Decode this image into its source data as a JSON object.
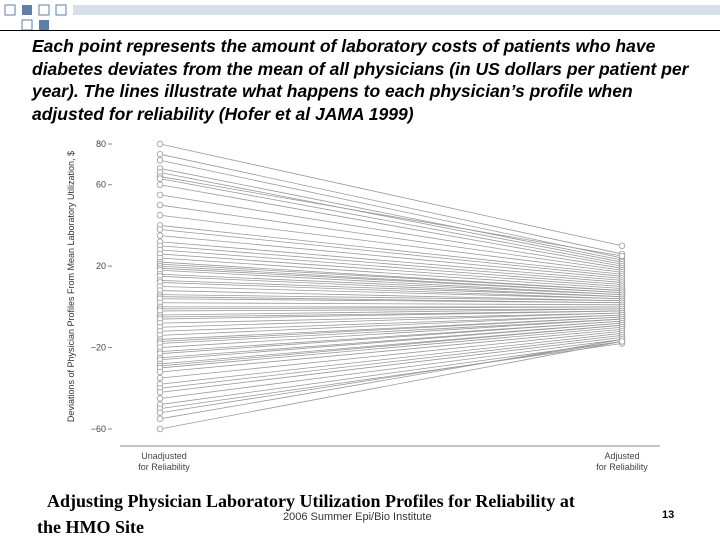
{
  "caption": "Each point represents the amount of laboratory costs of patients who have diabetes deviates from the mean of all physicians (in US dollars per patient per year). The lines illustrate what happens to each physician’s profile when adjusted for reliability (Hofer et al JAMA 1999)",
  "source_title": {
    "line1": "Adjusting Physician Laboratory Utilization Profiles for Reliability at",
    "line2": "the HMO Site"
  },
  "footer": "2006 Summer Epi/Bio Institute",
  "slide_number": "13",
  "colors": {
    "lines": "#9a9a9a",
    "points": "#9a9a9a",
    "axis": "#888888",
    "deco": "#5b7fa6"
  },
  "chart_data": {
    "type": "line",
    "ylabel": "Deviations of Physician Profiles From Mean Laboratory Utilization, $",
    "categories": [
      "Unadjusted for Reliability",
      "Adjusted for Reliability"
    ],
    "ylim": [
      -60,
      80
    ],
    "yticks": [
      -60,
      -20,
      20,
      60,
      80
    ],
    "ytick_labels": [
      "−60",
      "−20",
      "20",
      "60",
      "80"
    ],
    "grid": false,
    "series": [
      {
        "values": [
          80,
          30
        ]
      },
      {
        "values": [
          75,
          26
        ]
      },
      {
        "values": [
          72,
          24
        ]
      },
      {
        "values": [
          68,
          23
        ]
      },
      {
        "values": [
          66,
          22
        ]
      },
      {
        "values": [
          64,
          25
        ]
      },
      {
        "values": [
          63,
          21
        ]
      },
      {
        "values": [
          60,
          20
        ]
      },
      {
        "values": [
          55,
          19
        ]
      },
      {
        "values": [
          50,
          18
        ]
      },
      {
        "values": [
          45,
          17
        ]
      },
      {
        "values": [
          40,
          16
        ]
      },
      {
        "values": [
          38,
          15
        ]
      },
      {
        "values": [
          35,
          14
        ]
      },
      {
        "values": [
          32,
          13
        ]
      },
      {
        "values": [
          30,
          12
        ]
      },
      {
        "values": [
          28,
          11
        ]
      },
      {
        "values": [
          26,
          10
        ]
      },
      {
        "values": [
          24,
          9
        ]
      },
      {
        "values": [
          22,
          8
        ]
      },
      {
        "values": [
          21,
          8
        ]
      },
      {
        "values": [
          20,
          7
        ]
      },
      {
        "values": [
          19,
          7
        ]
      },
      {
        "values": [
          18,
          6
        ]
      },
      {
        "values": [
          16,
          6
        ]
      },
      {
        "values": [
          15,
          5
        ]
      },
      {
        "values": [
          13,
          5
        ]
      },
      {
        "values": [
          12,
          4
        ]
      },
      {
        "values": [
          10,
          4
        ]
      },
      {
        "values": [
          8,
          3
        ]
      },
      {
        "values": [
          6,
          3
        ]
      },
      {
        "values": [
          5,
          2
        ]
      },
      {
        "values": [
          4,
          2
        ]
      },
      {
        "values": [
          2,
          1
        ]
      },
      {
        "values": [
          0,
          0
        ]
      },
      {
        "values": [
          -1,
          0
        ]
      },
      {
        "values": [
          -2,
          -1
        ]
      },
      {
        "values": [
          -4,
          -1
        ]
      },
      {
        "values": [
          -5,
          -2
        ]
      },
      {
        "values": [
          -6,
          -2
        ]
      },
      {
        "values": [
          -8,
          -3
        ]
      },
      {
        "values": [
          -10,
          -3
        ]
      },
      {
        "values": [
          -12,
          -4
        ]
      },
      {
        "values": [
          -14,
          -4
        ]
      },
      {
        "values": [
          -16,
          -5
        ]
      },
      {
        "values": [
          -17,
          -5
        ]
      },
      {
        "values": [
          -18,
          -6
        ]
      },
      {
        "values": [
          -20,
          -6
        ]
      },
      {
        "values": [
          -22,
          -7
        ]
      },
      {
        "values": [
          -23,
          -7
        ]
      },
      {
        "values": [
          -25,
          -8
        ]
      },
      {
        "values": [
          -26,
          -8
        ]
      },
      {
        "values": [
          -28,
          -9
        ]
      },
      {
        "values": [
          -29,
          -9
        ]
      },
      {
        "values": [
          -30,
          -10
        ]
      },
      {
        "values": [
          -32,
          -11
        ]
      },
      {
        "values": [
          -35,
          -12
        ]
      },
      {
        "values": [
          -38,
          -13
        ]
      },
      {
        "values": [
          -40,
          -14
        ]
      },
      {
        "values": [
          -42,
          -15
        ]
      },
      {
        "values": [
          -45,
          -16
        ]
      },
      {
        "values": [
          -48,
          -17
        ]
      },
      {
        "values": [
          -50,
          -18
        ]
      },
      {
        "values": [
          -52,
          -17
        ]
      },
      {
        "values": [
          -55,
          -16
        ]
      },
      {
        "values": [
          -60,
          -17
        ]
      }
    ]
  }
}
